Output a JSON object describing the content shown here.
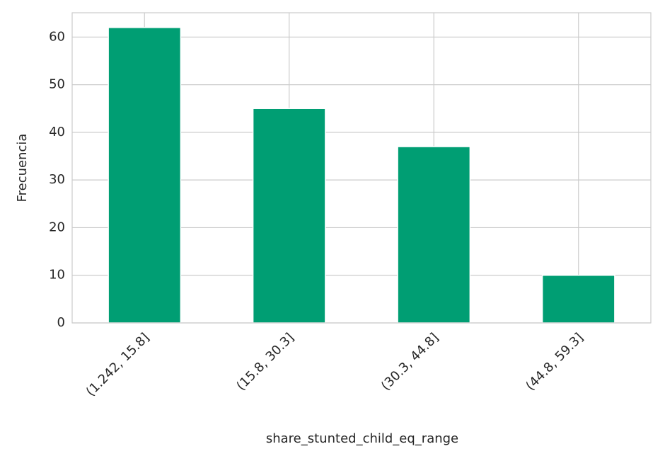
{
  "chart_data": {
    "type": "bar",
    "xlabel": "share_stunted_child_eq_range",
    "ylabel": "Frecuencia",
    "categories": [
      "(1.242, 15.8]",
      "(15.8, 30.3]",
      "(30.3, 44.8]",
      "(44.8, 59.3]"
    ],
    "values": [
      62,
      45,
      37,
      10
    ],
    "color": "#009e73",
    "ylim": [
      0,
      65.1
    ],
    "yticks": [
      0,
      10,
      20,
      30,
      40,
      50,
      60
    ],
    "grid": true
  }
}
